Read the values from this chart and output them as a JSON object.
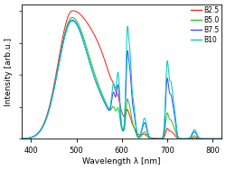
{
  "xlabel": "Wavelength λ [nm]",
  "ylabel": "Intensity [arb.u.]",
  "xlim": [
    380,
    820
  ],
  "xticks": [
    400,
    500,
    600,
    700,
    800
  ],
  "legend_labels": [
    "B2.5",
    "B5.0",
    "B7.5",
    "B10"
  ],
  "colors": [
    "#ff2222",
    "#22cc22",
    "#4444ff",
    "#00cccc"
  ],
  "linewidth": 0.75,
  "figsize": [
    2.5,
    1.89
  ],
  "dpi": 100
}
